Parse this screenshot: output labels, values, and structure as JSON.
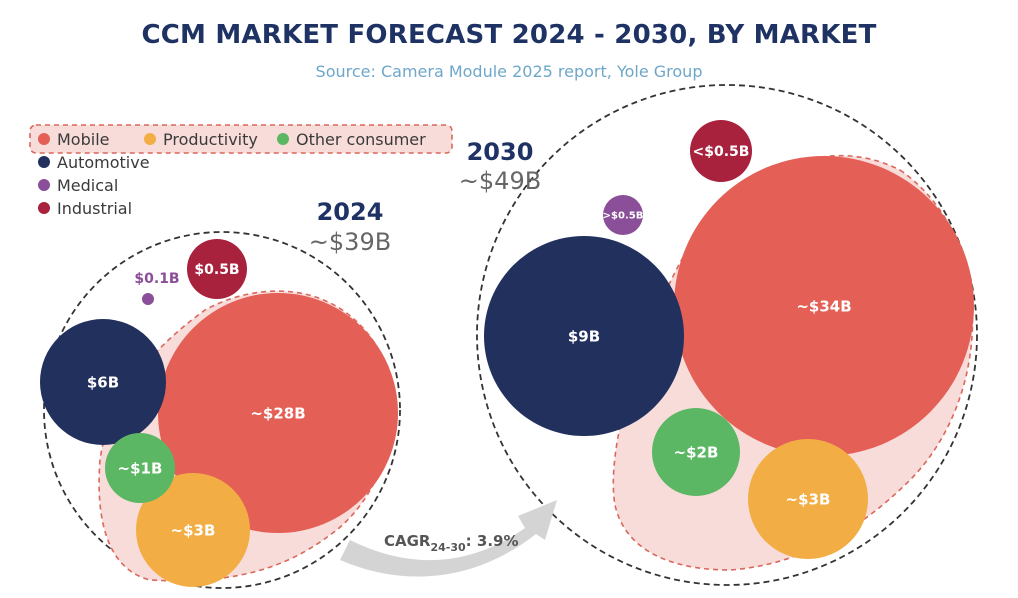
{
  "title": "CCM MARKET FORECAST 2024 - 2030, BY MARKET",
  "subtitle": "Source: Camera Module 2025 report, Yole Group",
  "colors": {
    "Mobile": "#e45f55",
    "Productivity": "#f2ae44",
    "Other consumer": "#5cb765",
    "Automotive": "#22305e",
    "Medical": "#8a4f98",
    "Industrial": "#a8213d",
    "group_fill": "#f8dcd9",
    "group_stroke": "#d9675c",
    "outline": "#333333",
    "arrow": "#d4d4d4",
    "year": "#1e3264",
    "total": "#666666"
  },
  "chart_data": {
    "type": "bubble",
    "title": "CCM MARKET FORECAST 2024 - 2030, BY MARKET",
    "legend": {
      "grouped": [
        "Mobile",
        "Productivity",
        "Other consumer"
      ],
      "others": [
        "Automotive",
        "Medical",
        "Industrial"
      ]
    },
    "panels": [
      {
        "year": "2024",
        "total": "~$39B",
        "bubbles": [
          {
            "market": "Mobile",
            "label": "~$28B",
            "value": 28
          },
          {
            "market": "Automotive",
            "label": "$6B",
            "value": 6
          },
          {
            "market": "Productivity",
            "label": "~$3B",
            "value": 3
          },
          {
            "market": "Other consumer",
            "label": "~$1B",
            "value": 1
          },
          {
            "market": "Industrial",
            "label": "$0.5B",
            "value": 0.5
          },
          {
            "market": "Medical",
            "label": "$0.1B",
            "value": 0.1
          }
        ]
      },
      {
        "year": "2030",
        "total": "~$49B",
        "bubbles": [
          {
            "market": "Mobile",
            "label": "~$34B",
            "value": 34
          },
          {
            "market": "Automotive",
            "label": "$9B",
            "value": 9
          },
          {
            "market": "Productivity",
            "label": "~$3B",
            "value": 3
          },
          {
            "market": "Other consumer",
            "label": "~$2B",
            "value": 2
          },
          {
            "market": "Industrial",
            "label": "<$0.5B",
            "value": 0.5
          },
          {
            "market": "Medical",
            "label": ">$0.5B",
            "value": 0.5
          }
        ]
      }
    ],
    "cagr": {
      "label": "CAGR",
      "period": "24-30",
      "value": ": 3.9%"
    }
  }
}
